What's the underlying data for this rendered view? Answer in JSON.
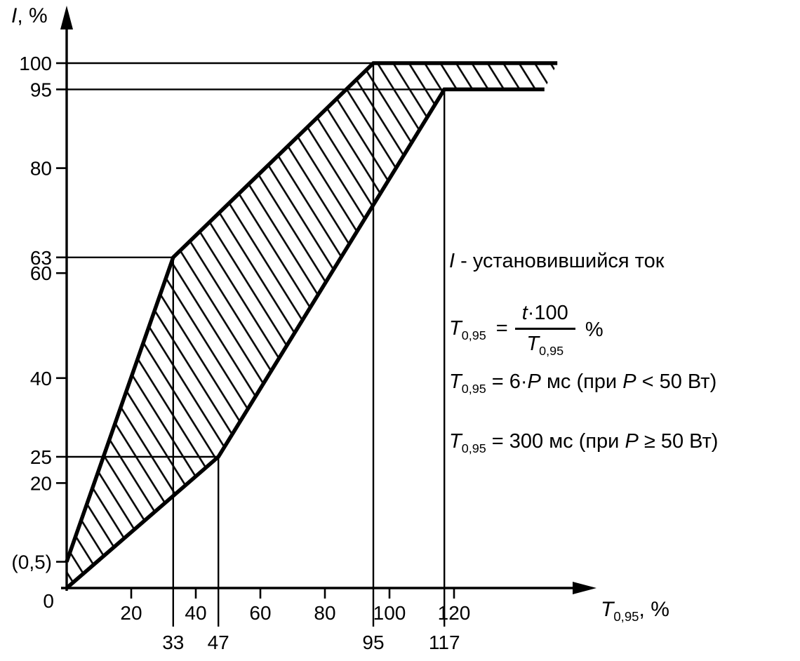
{
  "figure": {
    "background": "#ffffff",
    "ink": "#000000"
  },
  "labels": {
    "y_title": {
      "var": "I",
      "rest": ", %"
    },
    "x_title": {
      "var": "T",
      "sub": "0,95",
      "rest": ", %"
    }
  },
  "chart_data": {
    "type": "area",
    "xlabel": "T0,95, %",
    "ylabel": "I, %",
    "xlim": [
      0,
      160
    ],
    "ylim": [
      0,
      107
    ],
    "grid": false,
    "display_min_y": 5,
    "x_tick_labels": [
      {
        "text": "20",
        "v": 20
      },
      {
        "text": "40",
        "v": 40
      },
      {
        "text": "60",
        "v": 60
      },
      {
        "text": "80",
        "v": 80
      },
      {
        "text": "100",
        "v": 100
      },
      {
        "text": "120",
        "v": 120
      }
    ],
    "x_key_labels": [
      {
        "text": "33",
        "v": 33
      },
      {
        "text": "47",
        "v": 47
      },
      {
        "text": "95",
        "v": 95
      },
      {
        "text": "117",
        "v": 117
      }
    ],
    "y_tick_labels": [
      {
        "text": "100",
        "v": 100
      },
      {
        "text": "95",
        "v": 95
      },
      {
        "text": "80",
        "v": 80
      },
      {
        "text": "63",
        "v": 63
      },
      {
        "text": "60",
        "v": 60
      },
      {
        "text": "40",
        "v": 40
      },
      {
        "text": "25",
        "v": 25
      },
      {
        "text": "20",
        "v": 20
      },
      {
        "text": "(0,5)",
        "v": 0.5
      }
    ],
    "origin_label": "0",
    "series": [
      {
        "name": "upper-limit",
        "points": [
          [
            0,
            0.5
          ],
          [
            33,
            63
          ],
          [
            95,
            100
          ],
          [
            152,
            100
          ]
        ]
      },
      {
        "name": "lower-limit",
        "points": [
          [
            0,
            0
          ],
          [
            47,
            25
          ],
          [
            117,
            95
          ],
          [
            148,
            95
          ]
        ]
      }
    ],
    "hatch": {
      "between": [
        "upper-limit",
        "lower-limit"
      ],
      "angle_deg": -32,
      "spacing_px": 19
    },
    "reference_lines": {
      "horizontal": [
        {
          "y": 100,
          "x_end": 95
        },
        {
          "y": 95,
          "x_end": 117
        },
        {
          "y": 63,
          "x_end": 33
        },
        {
          "y": 25,
          "x_end": 47
        }
      ],
      "vertical": [
        {
          "x": 33,
          "y_top": 63
        },
        {
          "x": 47,
          "y_top": 25
        },
        {
          "x": 95,
          "y_top": 100
        },
        {
          "x": 117,
          "y_top": 95
        }
      ]
    }
  },
  "annotations": {
    "steady_current": {
      "var": "I",
      "text": " - установившийся ток"
    },
    "rel_time": {
      "lhs_var": "T",
      "lhs_sub": "0,95",
      "eq": " = ",
      "num_var": "t",
      "num_rest": "·100",
      "den_var": "T",
      "den_sub": "0,95",
      "unit": "%"
    },
    "low_power": {
      "lhs_var": "T",
      "lhs_sub": "0,95",
      "mid1": " = 6·",
      "p_var": "P",
      "mid2": " мс (при ",
      "p2_var": "P",
      "tail": " < 50 Вт)"
    },
    "high_power": {
      "lhs_var": "T",
      "lhs_sub": "0,95",
      "mid1": " = 300 мс (при ",
      "p_var": "P",
      "tail": " ≥ 50 Вт)"
    }
  }
}
